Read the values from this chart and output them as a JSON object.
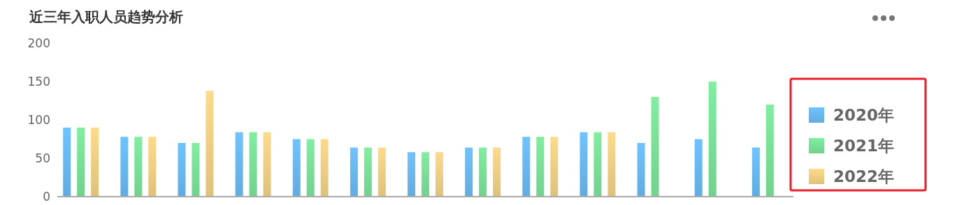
{
  "chart_data": {
    "type": "bar",
    "title": "近三年入职人员趋势分析",
    "categories": [
      null,
      null,
      null,
      null,
      null,
      null,
      null,
      null,
      null,
      null,
      null,
      null,
      null
    ],
    "series": [
      {
        "name": "2020年",
        "color": "#6ec3ff",
        "values": [
          90,
          78,
          70,
          84,
          75,
          64,
          58,
          64,
          78,
          84,
          70,
          75,
          64
        ]
      },
      {
        "name": "2021年",
        "color": "#80eea0",
        "values": [
          90,
          78,
          70,
          84,
          75,
          64,
          58,
          64,
          78,
          84,
          130,
          150,
          120
        ]
      },
      {
        "name": "2022年",
        "color": "#fddb8a",
        "values": [
          90,
          78,
          138,
          84,
          75,
          64,
          58,
          64,
          78,
          84,
          null,
          null,
          null
        ]
      }
    ],
    "ylim": [
      0,
      200
    ],
    "yticks": [
      0,
      50,
      100,
      150,
      200
    ],
    "grid": false,
    "legend": "right"
  }
}
